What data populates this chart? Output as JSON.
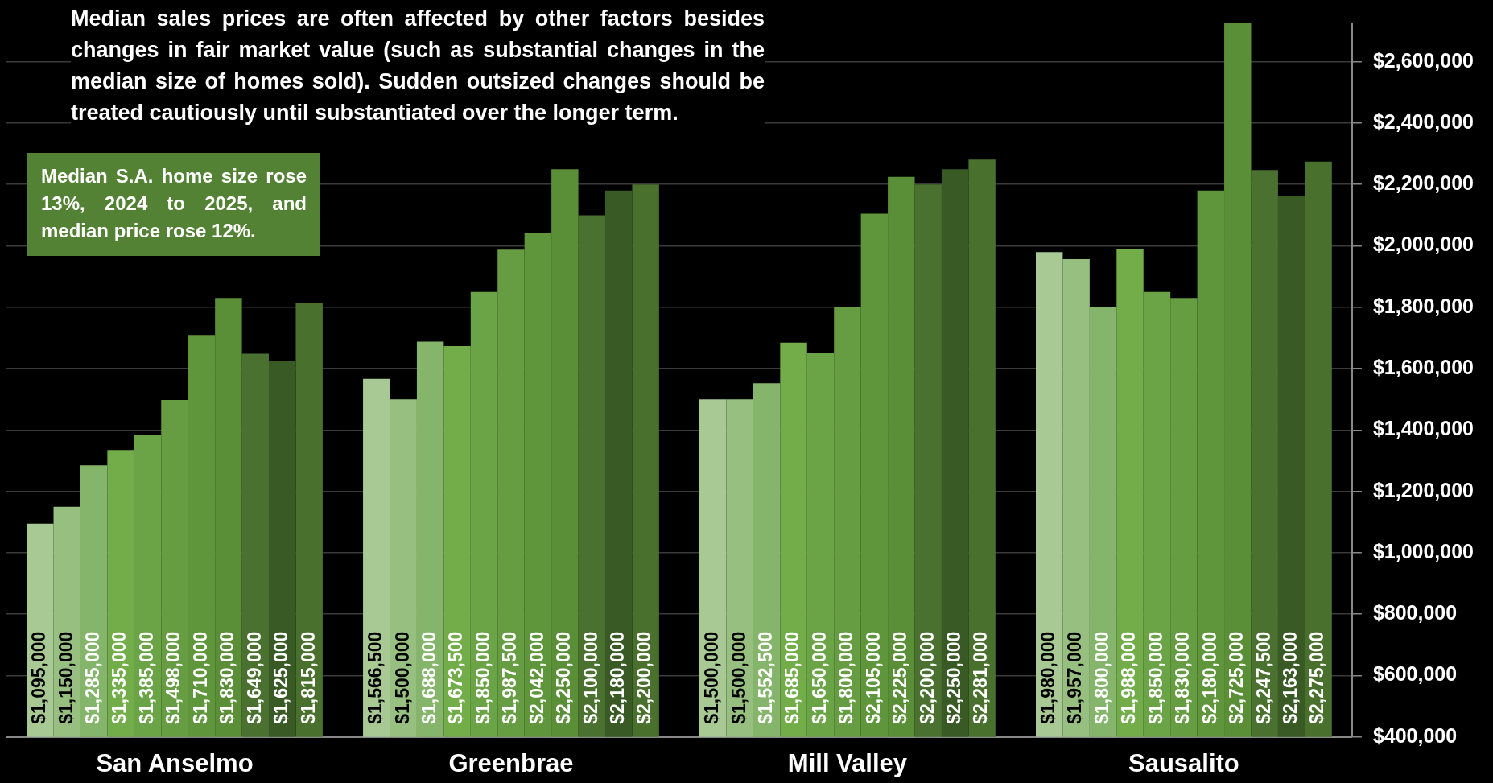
{
  "chart_data": {
    "type": "bar",
    "categories": [
      "San Anselmo",
      "Greenbrae",
      "Mill Valley",
      "Sausalito"
    ],
    "series": [
      {
        "color": "#a9c994",
        "values": [
          1095000,
          1566500,
          1500000,
          1980000
        ],
        "value_labels": [
          "$1,095,000",
          "$1,566,500",
          "$1,500,000",
          "$1,980,000"
        ]
      },
      {
        "color": "#97bf80",
        "values": [
          1150000,
          1500000,
          1500000,
          1957000
        ],
        "value_labels": [
          "$1,150,000",
          "$1,500,000",
          "$1,500,000",
          "$1,957,000"
        ]
      },
      {
        "color": "#84b56a",
        "values": [
          1285000,
          1688000,
          1552500,
          1800000
        ],
        "value_labels": [
          "$1,285,000",
          "$1,688,000",
          "$1,552,500",
          "$1,800,000"
        ]
      },
      {
        "color": "#72ad4a",
        "values": [
          1335000,
          1673500,
          1685000,
          1988000
        ],
        "value_labels": [
          "$1,335,000",
          "$1,673,500",
          "$1,685,000",
          "$1,988,000"
        ]
      },
      {
        "color": "#6ba446",
        "values": [
          1385000,
          1850000,
          1650000,
          1850000
        ],
        "value_labels": [
          "$1,385,000",
          "$1,850,000",
          "$1,650,000",
          "$1,850,000"
        ]
      },
      {
        "color": "#679d42",
        "values": [
          1498000,
          1987500,
          1800000,
          1830000
        ],
        "value_labels": [
          "$1,498,000",
          "$1,987,500",
          "$1,800,000",
          "$1,830,000"
        ]
      },
      {
        "color": "#5f963c",
        "values": [
          1710000,
          2042000,
          2105000,
          2180000
        ],
        "value_labels": [
          "$1,710,000",
          "$2,042,000",
          "$2,105,000",
          "$2,180,000"
        ]
      },
      {
        "color": "#5a8f38",
        "values": [
          1830000,
          2250000,
          2225000,
          2725000
        ],
        "value_labels": [
          "$1,830,000",
          "$2,250,000",
          "$2,225,000",
          "$2,725,000"
        ]
      },
      {
        "color": "#4a712f",
        "values": [
          1649000,
          2100000,
          2200000,
          2247500
        ],
        "value_labels": [
          "$1,649,000",
          "$2,100,000",
          "$2,200,000",
          "$2,247,500"
        ]
      },
      {
        "color": "#3a5a25",
        "values": [
          1625000,
          2180000,
          2250000,
          2163000
        ],
        "value_labels": [
          "$1,625,000",
          "$2,180,000",
          "$2,250,000",
          "$2,163,000"
        ]
      },
      {
        "color": "#4a702e",
        "values": [
          1815000,
          2200000,
          2281000,
          2275000
        ],
        "value_labels": [
          "$1,815,000",
          "$2,200,000",
          "$2,281,000",
          "$2,275,000"
        ]
      }
    ],
    "ylim": [
      400000,
      2725000
    ],
    "yticks": [
      {
        "value": 400000,
        "label": "$400,000"
      },
      {
        "value": 600000,
        "label": "$600,000"
      },
      {
        "value": 800000,
        "label": "$800,000"
      },
      {
        "value": 1000000,
        "label": "$1,000,000"
      },
      {
        "value": 1200000,
        "label": "$1,200,000"
      },
      {
        "value": 1400000,
        "label": "$1,400,000"
      },
      {
        "value": 1600000,
        "label": "$1,600,000"
      },
      {
        "value": 1800000,
        "label": "$1,800,000"
      },
      {
        "value": 2000000,
        "label": "$2,000,000"
      },
      {
        "value": 2200000,
        "label": "$2,200,000"
      },
      {
        "value": 2400000,
        "label": "$2,400,000"
      },
      {
        "value": 2600000,
        "label": "$2,600,000"
      }
    ],
    "grid": "y",
    "annotations": [
      "Median sales prices are often affected by other factors besides changes in fair market value (such as substantial changes in the median size of homes sold). Sudden outsized changes should be treated cautiously until substantiated over the longer term.",
      "Median S.A. home size rose 13%, 2024 to 2025, and median price rose 12%."
    ]
  }
}
